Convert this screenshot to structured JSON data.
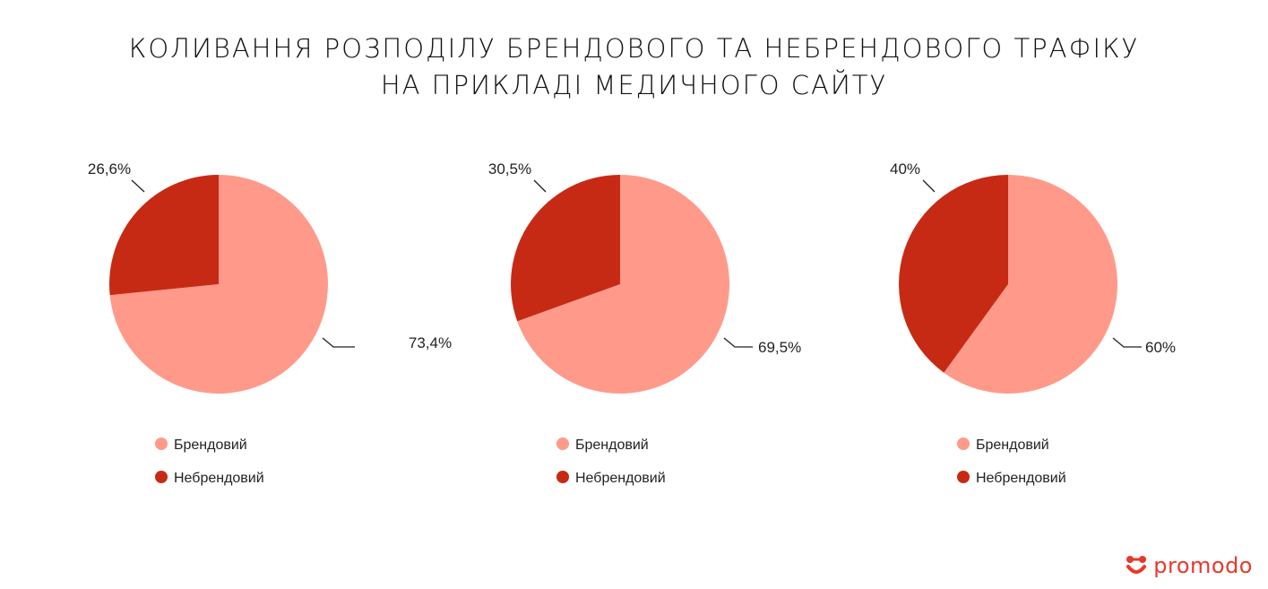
{
  "title": {
    "line1": "КОЛИВАННЯ РОЗПОДІЛУ БРЕНДОВОГО ТА НЕБРЕНДОВОГО ТРАФІКУ",
    "line2": "НА ПРИКЛАДІ МЕДИЧНОГО САЙТУ"
  },
  "colors": {
    "branded": "#ff9a8a",
    "nonbranded": "#c72a14",
    "brand_logo": "#e8382a"
  },
  "chart_data": [
    {
      "type": "pie",
      "categories": [
        "Брендовий",
        "Небрендовий"
      ],
      "values": [
        73.4,
        26.6
      ],
      "labels": [
        "73,4%",
        "26,6%"
      ],
      "legend": [
        "Брендовий",
        "Небрендовий"
      ]
    },
    {
      "type": "pie",
      "categories": [
        "Брендовий",
        "Небрендовий"
      ],
      "values": [
        69.5,
        30.5
      ],
      "labels": [
        "69,5%",
        "30,5%"
      ],
      "legend": [
        "Брендовий",
        "Небрендовий"
      ]
    },
    {
      "type": "pie",
      "categories": [
        "Брендовий",
        "Небрендовий"
      ],
      "values": [
        60,
        40
      ],
      "labels": [
        "60%",
        "40%"
      ],
      "legend": [
        "Брендовий",
        "Небрендовий"
      ]
    }
  ],
  "brand": {
    "name": "promodo",
    "icon": "promodo-logo-icon"
  }
}
